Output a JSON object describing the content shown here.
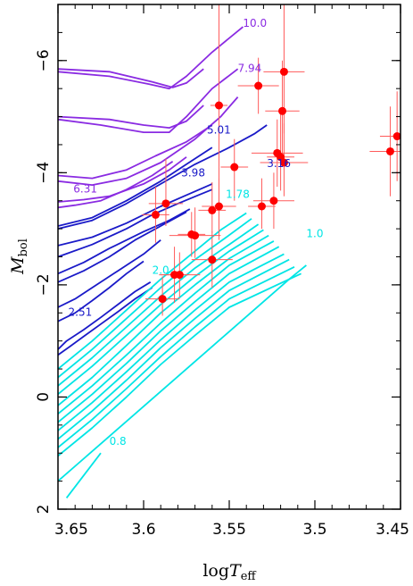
{
  "chart_data": {
    "type": "line",
    "title": "",
    "xlabel": {
      "main": "log",
      "var": "T",
      "sub": "eff"
    },
    "ylabel": {
      "var": "M",
      "sub": "bol"
    },
    "xlim": [
      3.65,
      3.45
    ],
    "ylim": [
      2,
      -7
    ],
    "x_ticks": [
      3.65,
      3.6,
      3.55,
      3.5,
      3.45
    ],
    "x_tick_labels": [
      "3.65",
      "3.6",
      "3.55",
      "3.5",
      "3.45"
    ],
    "y_ticks": [
      2,
      0,
      -2,
      -4,
      -6
    ],
    "y_tick_labels": [
      "2",
      "0",
      "−2",
      "−4",
      "−6"
    ],
    "grid": false,
    "colors": {
      "high_mass": "#8a2be2",
      "mid_mass": "#1a1ac8",
      "low_mass": "#00e5e5",
      "points": "#ff0000",
      "errorbars": "#ff5a5a"
    },
    "track_labels": [
      {
        "text": "10.0",
        "x": 3.542,
        "y": -6.6,
        "color": "#8a2be2"
      },
      {
        "text": "7.94",
        "x": 3.545,
        "y": -5.8,
        "color": "#8a2be2"
      },
      {
        "text": "6.31",
        "x": 3.641,
        "y": -3.65,
        "color": "#8a2be2"
      },
      {
        "text": "5.01",
        "x": 3.563,
        "y": -4.7,
        "color": "#1a1ac8"
      },
      {
        "text": "3.98",
        "x": 3.578,
        "y": -3.93,
        "color": "#1a1ac8"
      },
      {
        "text": "3.16",
        "x": 3.528,
        "y": -4.1,
        "color": "#1a1ac8"
      },
      {
        "text": "2.51",
        "x": 3.644,
        "y": -1.45,
        "color": "#1a1ac8"
      },
      {
        "text": "1.78",
        "x": 3.552,
        "y": -3.55,
        "color": "#00e5e5"
      },
      {
        "text": "2.0",
        "x": 3.595,
        "y": -2.2,
        "color": "#00e5e5"
      },
      {
        "text": "1.0",
        "x": 3.505,
        "y": -2.85,
        "color": "#00e5e5"
      },
      {
        "text": "0.8",
        "x": 3.62,
        "y": 0.85,
        "color": "#00e5e5"
      }
    ],
    "series": [
      {
        "group": "high",
        "x": [
          3.65,
          3.62,
          3.595,
          3.583,
          3.575,
          3.565
        ],
        "y": [
          -5.85,
          -5.8,
          -5.62,
          -5.52,
          -5.6,
          -5.85
        ]
      },
      {
        "group": "high",
        "x": [
          3.65,
          3.62,
          3.597,
          3.585,
          3.575,
          3.56,
          3.542
        ],
        "y": [
          -5.8,
          -5.72,
          -5.58,
          -5.5,
          -5.72,
          -6.15,
          -6.6
        ]
      },
      {
        "group": "high",
        "x": [
          3.65,
          3.62,
          3.6,
          3.585,
          3.575,
          3.565
        ],
        "y": [
          -5.0,
          -4.95,
          -4.85,
          -4.8,
          -4.92,
          -5.2
        ]
      },
      {
        "group": "high",
        "x": [
          3.65,
          3.625,
          3.6,
          3.585,
          3.575,
          3.56,
          3.545
        ],
        "y": [
          -4.95,
          -4.85,
          -4.72,
          -4.72,
          -5.0,
          -5.5,
          -5.85
        ]
      },
      {
        "group": "high",
        "x": [
          3.65,
          3.63,
          3.61,
          3.593,
          3.575,
          3.56
        ],
        "y": [
          -3.95,
          -3.9,
          -4.05,
          -4.3,
          -4.55,
          -4.85
        ]
      },
      {
        "group": "high",
        "x": [
          3.65,
          3.63,
          3.61,
          3.59,
          3.57,
          3.555,
          3.545
        ],
        "y": [
          -3.85,
          -3.78,
          -3.9,
          -4.18,
          -4.6,
          -5.0,
          -5.35
        ]
      },
      {
        "group": "high",
        "x": [
          3.65,
          3.635,
          3.62,
          3.6,
          3.585,
          3.575
        ],
        "y": [
          -3.48,
          -3.52,
          -3.58,
          -3.8,
          -4.05,
          -4.28
        ]
      },
      {
        "group": "high",
        "x": [
          3.65,
          3.64,
          3.625,
          3.61,
          3.595,
          3.583
        ],
        "y": [
          -3.38,
          -3.42,
          -3.5,
          -3.7,
          -3.95,
          -4.2
        ]
      },
      {
        "group": "mid",
        "x": [
          3.65,
          3.63,
          3.61,
          3.59,
          3.575,
          3.56
        ],
        "y": [
          -3.05,
          -3.2,
          -3.5,
          -3.85,
          -4.15,
          -4.45
        ]
      },
      {
        "group": "mid",
        "x": [
          3.65,
          3.63,
          3.61,
          3.59,
          3.57,
          3.55,
          3.535,
          3.528
        ],
        "y": [
          -3.0,
          -3.15,
          -3.45,
          -3.8,
          -4.15,
          -4.45,
          -4.7,
          -4.85
        ]
      },
      {
        "group": "mid",
        "x": [
          3.65,
          3.63,
          3.61,
          3.59,
          3.575,
          3.56
        ],
        "y": [
          -2.7,
          -2.85,
          -3.1,
          -3.4,
          -3.6,
          -3.8
        ]
      },
      {
        "group": "mid",
        "x": [
          3.65,
          3.63,
          3.61,
          3.595,
          3.58,
          3.568,
          3.56
        ],
        "y": [
          -2.5,
          -2.72,
          -3.0,
          -3.25,
          -3.45,
          -3.6,
          -3.7
        ]
      },
      {
        "group": "mid",
        "x": [
          3.65,
          3.635,
          3.62,
          3.6,
          3.585,
          3.573
        ],
        "y": [
          -2.2,
          -2.4,
          -2.65,
          -2.95,
          -3.15,
          -3.35
        ]
      },
      {
        "group": "mid",
        "x": [
          3.65,
          3.635,
          3.62,
          3.605,
          3.59,
          3.575
        ],
        "y": [
          -2.05,
          -2.25,
          -2.5,
          -2.8,
          -3.05,
          -3.3
        ]
      },
      {
        "group": "mid",
        "x": [
          3.65,
          3.64,
          3.63,
          3.615,
          3.6,
          3.59
        ],
        "y": [
          -1.6,
          -1.75,
          -1.95,
          -2.25,
          -2.55,
          -2.8
        ]
      },
      {
        "group": "mid",
        "x": [
          3.65,
          3.64,
          3.63,
          3.62,
          3.61,
          3.6
        ],
        "y": [
          -1.35,
          -1.5,
          -1.72,
          -1.95,
          -2.2,
          -2.42
        ]
      },
      {
        "group": "mid",
        "x": [
          3.65,
          3.645,
          3.635,
          3.625,
          3.615,
          3.605,
          3.596
        ],
        "y": [
          -0.85,
          -1.0,
          -1.2,
          -1.42,
          -1.65,
          -1.88,
          -2.05
        ]
      },
      {
        "group": "mid",
        "x": [
          3.65,
          3.643,
          3.635,
          3.625,
          3.615,
          3.605,
          3.595
        ],
        "y": [
          -0.75,
          -0.9,
          -1.08,
          -1.3,
          -1.52,
          -1.75,
          -1.95
        ]
      },
      {
        "group": "low",
        "x": [
          3.65,
          3.63,
          3.61,
          3.59,
          3.57,
          3.555,
          3.54
        ],
        "y": [
          -0.5,
          -1.0,
          -1.55,
          -2.1,
          -2.6,
          -2.98,
          -3.28
        ]
      },
      {
        "group": "low",
        "x": [
          3.65,
          3.63,
          3.61,
          3.59,
          3.57,
          3.553,
          3.537
        ],
        "y": [
          -0.35,
          -0.85,
          -1.4,
          -1.95,
          -2.45,
          -2.82,
          -3.18
        ]
      },
      {
        "group": "low",
        "x": [
          3.65,
          3.63,
          3.61,
          3.59,
          3.57,
          3.55,
          3.533
        ],
        "y": [
          -0.2,
          -0.7,
          -1.25,
          -1.8,
          -2.3,
          -2.72,
          -3.08
        ]
      },
      {
        "group": "low",
        "x": [
          3.65,
          3.63,
          3.61,
          3.59,
          3.57,
          3.55,
          3.53
        ],
        "y": [
          -0.05,
          -0.55,
          -1.1,
          -1.65,
          -2.15,
          -2.6,
          -2.98
        ]
      },
      {
        "group": "low",
        "x": [
          3.65,
          3.63,
          3.61,
          3.59,
          3.57,
          3.55,
          3.527
        ],
        "y": [
          0.15,
          -0.35,
          -0.92,
          -1.5,
          -2.0,
          -2.47,
          -2.88
        ]
      },
      {
        "group": "low",
        "x": [
          3.65,
          3.63,
          3.61,
          3.59,
          3.57,
          3.55,
          3.524
        ],
        "y": [
          0.3,
          -0.2,
          -0.75,
          -1.32,
          -1.85,
          -2.35,
          -2.78
        ]
      },
      {
        "group": "low",
        "x": [
          3.65,
          3.63,
          3.61,
          3.59,
          3.57,
          3.55,
          3.521
        ],
        "y": [
          0.45,
          -0.05,
          -0.6,
          -1.18,
          -1.7,
          -2.2,
          -2.68
        ]
      },
      {
        "group": "low",
        "x": [
          3.65,
          3.63,
          3.61,
          3.59,
          3.57,
          3.55,
          3.518
        ],
        "y": [
          0.6,
          0.1,
          -0.45,
          -1.02,
          -1.55,
          -2.05,
          -2.55
        ]
      },
      {
        "group": "low",
        "x": [
          3.65,
          3.63,
          3.61,
          3.59,
          3.57,
          3.55,
          3.515
        ],
        "y": [
          0.75,
          0.25,
          -0.3,
          -0.88,
          -1.4,
          -1.9,
          -2.45
        ]
      },
      {
        "group": "low",
        "x": [
          3.65,
          3.63,
          3.61,
          3.59,
          3.57,
          3.55,
          3.512
        ],
        "y": [
          0.9,
          0.4,
          -0.15,
          -0.72,
          -1.25,
          -1.75,
          -2.32
        ]
      },
      {
        "group": "low",
        "x": [
          3.65,
          3.63,
          3.61,
          3.59,
          3.57,
          3.55,
          3.508
        ],
        "y": [
          1.05,
          0.55,
          0.0,
          -0.58,
          -1.1,
          -1.6,
          -2.2
        ]
      },
      {
        "group": "low",
        "x": [
          3.65,
          3.635,
          3.62,
          3.605,
          3.59,
          3.575,
          3.56,
          3.545,
          3.53,
          3.515,
          3.505
        ],
        "y": [
          1.5,
          1.1,
          0.7,
          0.3,
          -0.1,
          -0.5,
          -0.9,
          -1.3,
          -1.7,
          -2.1,
          -2.35
        ]
      },
      {
        "group": "low",
        "x": [
          3.645,
          3.635,
          3.625
        ],
        "y": [
          1.8,
          1.4,
          1.0
        ]
      }
    ],
    "points": [
      {
        "x": 3.556,
        "y": -5.2,
        "xerr": 0.005,
        "yerr_up": 1.9,
        "yerr_dn": 2.4
      },
      {
        "x": 3.533,
        "y": -5.55,
        "xerr": 0.012,
        "yerr_up": 0.5,
        "yerr_dn": 0.5
      },
      {
        "x": 3.518,
        "y": -5.8,
        "xerr": 0.012,
        "yerr_up": 1.3,
        "yerr_dn": 1.1
      },
      {
        "x": 3.519,
        "y": -5.1,
        "xerr": 0.01,
        "yerr_up": 0.9,
        "yerr_dn": 0.9
      },
      {
        "x": 3.522,
        "y": -4.35,
        "xerr": 0.015,
        "yerr_up": 0.6,
        "yerr_dn": 0.6
      },
      {
        "x": 3.52,
        "y": -4.28,
        "xerr": 0.008,
        "yerr_up": 0.8,
        "yerr_dn": 0.6
      },
      {
        "x": 3.518,
        "y": -4.18,
        "xerr": 0.014,
        "yerr_up": 0.7,
        "yerr_dn": 0.6
      },
      {
        "x": 3.547,
        "y": -4.1,
        "xerr": 0.008,
        "yerr_up": 0.5,
        "yerr_dn": 0.6
      },
      {
        "x": 3.524,
        "y": -3.5,
        "xerr": 0.012,
        "yerr_up": 0.5,
        "yerr_dn": 0.5
      },
      {
        "x": 3.531,
        "y": -3.4,
        "xerr": 0.008,
        "yerr_up": 0.5,
        "yerr_dn": 0.4
      },
      {
        "x": 3.556,
        "y": -3.4,
        "xerr": 0.01,
        "yerr_up": 0.5,
        "yerr_dn": 0.4
      },
      {
        "x": 3.56,
        "y": -3.33,
        "xerr": 0.008,
        "yerr_up": 0.5,
        "yerr_dn": 0.4
      },
      {
        "x": 3.587,
        "y": -3.45,
        "xerr": 0.01,
        "yerr_up": 0.8,
        "yerr_dn": 0.4
      },
      {
        "x": 3.593,
        "y": -3.25,
        "xerr": 0.008,
        "yerr_up": 0.5,
        "yerr_dn": 0.5
      },
      {
        "x": 3.572,
        "y": -2.9,
        "xerr": 0.008,
        "yerr_up": 0.4,
        "yerr_dn": 0.4
      },
      {
        "x": 3.57,
        "y": -2.88,
        "xerr": 0.015,
        "yerr_up": 0.5,
        "yerr_dn": 0.4
      },
      {
        "x": 3.56,
        "y": -2.45,
        "xerr": 0.012,
        "yerr_up": 0.5,
        "yerr_dn": 0.5
      },
      {
        "x": 3.582,
        "y": -2.18,
        "xerr": 0.008,
        "yerr_up": 0.5,
        "yerr_dn": 0.5
      },
      {
        "x": 3.579,
        "y": -2.18,
        "xerr": 0.012,
        "yerr_up": 0.4,
        "yerr_dn": 0.4
      },
      {
        "x": 3.589,
        "y": -1.75,
        "xerr": 0.01,
        "yerr_up": 0.4,
        "yerr_dn": 0.3
      },
      {
        "x": 3.456,
        "y": -4.38,
        "xerr": 0.012,
        "yerr_up": 0.8,
        "yerr_dn": 0.8
      },
      {
        "x": 3.452,
        "y": -4.65,
        "xerr": 0.01,
        "yerr_up": 0.8,
        "yerr_dn": 0.8
      }
    ]
  }
}
